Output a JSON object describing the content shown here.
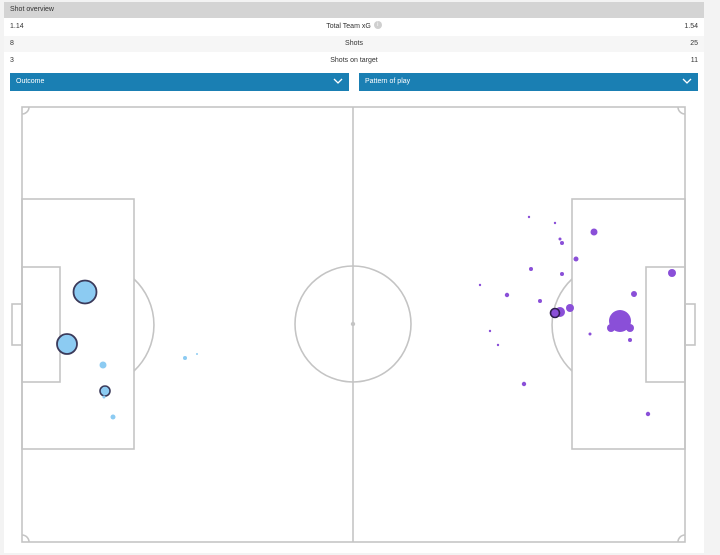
{
  "header": {
    "title": "Shot overview"
  },
  "stats": [
    {
      "home": "1.14",
      "label": "Total Team xG",
      "away": "1.54",
      "has_info": true
    },
    {
      "home": "8",
      "label": "Shots",
      "away": "25",
      "has_info": false
    },
    {
      "home": "3",
      "label": "Shots on target",
      "away": "11",
      "has_info": false
    }
  ],
  "filters": {
    "outcome_label": "Outcome",
    "pattern_label": "Pattern of play"
  },
  "icons": {
    "info": "info-icon",
    "chevron": "chevron-down-icon"
  },
  "colors": {
    "home_team": "#8ccbf2",
    "away_team": "#8a4fd8",
    "dropdown": "#1a7fb3",
    "pitch_lines": "#c4c4c4"
  }
}
